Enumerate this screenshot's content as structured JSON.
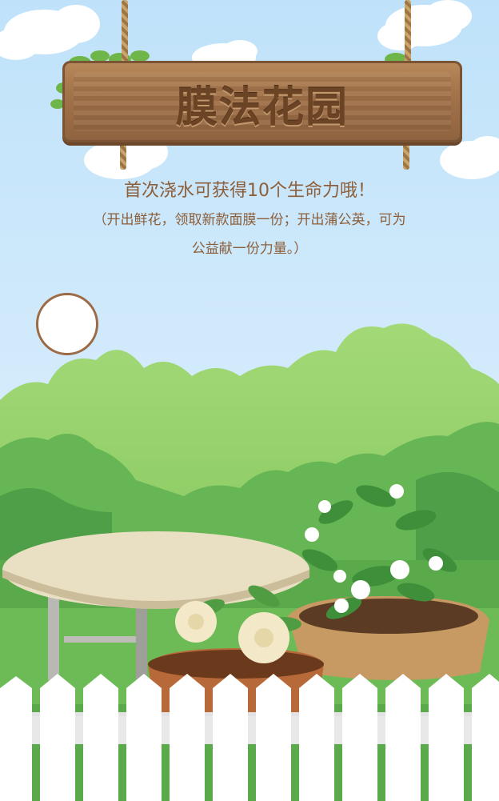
{
  "game": {
    "sign_title": "膜法花园",
    "headline": "首次浇水可获得10个生命力哦！",
    "subtext_line1": "（开出鲜花，领取新款面膜一份；开出蒲公英，可为",
    "subtext_line2": "公益献一份力量。）"
  },
  "colors": {
    "sky_top": "#bfe2fa",
    "sky_bottom": "#e6f4fd",
    "bush_light": "#97d36a",
    "bush_dark": "#5fb14f",
    "wood": "#a3734a",
    "text_brown": "#8c5e39",
    "fence": "#ffffff"
  },
  "icons": {
    "avatar": "avatar-circle",
    "sign": "wooden-sign",
    "flowers": "gardenia-icon",
    "table": "garden-table-icon"
  }
}
